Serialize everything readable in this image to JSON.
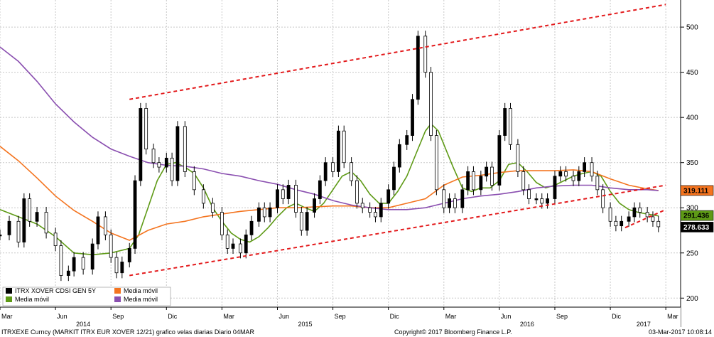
{
  "chart_data": {
    "type": "line",
    "title": "",
    "xlabel": "",
    "ylabel": "",
    "ylim": [
      190,
      530
    ],
    "y_ticks": [
      200,
      250,
      300,
      350,
      400,
      450,
      500
    ],
    "x_tick_labels": [
      "Mar",
      "Jun",
      "Sep",
      "Dic",
      "Mar",
      "Jun",
      "Sep",
      "Dic",
      "Mar",
      "Jun",
      "Sep",
      "Dic",
      "Mar"
    ],
    "x_ticks_months": [
      0,
      3,
      6,
      9,
      12,
      15,
      18,
      21,
      24,
      27,
      30,
      33,
      36
    ],
    "year_labels": [
      {
        "label": "2014",
        "month": 4.5
      },
      {
        "label": "2015",
        "month": 16.5
      },
      {
        "label": "2016",
        "month": 28.5
      },
      {
        "label": "2017",
        "month": 34.8
      }
    ],
    "last_values": [
      {
        "series": "Media móvil (200)",
        "value": "319.111",
        "color": "#f4741f"
      },
      {
        "series": "Media móvil (40)",
        "value": "291.436",
        "color": "#5e9a16"
      },
      {
        "series": "ITRX XOVER CDSI GEN 5Y",
        "value": "278.633",
        "color": "#000000"
      }
    ],
    "series": [
      {
        "name": "ITRX XOVER CDSI GEN 5Y",
        "kind": "candles",
        "color": "#000000",
        "points": [
          [
            0,
            270
          ],
          [
            0.5,
            285
          ],
          [
            1,
            262
          ],
          [
            1.3,
            310
          ],
          [
            1.6,
            285
          ],
          [
            2,
            295
          ],
          [
            2.5,
            272
          ],
          [
            3,
            258
          ],
          [
            3.3,
            225
          ],
          [
            3.7,
            230
          ],
          [
            4,
            245
          ],
          [
            4.5,
            232
          ],
          [
            5,
            260
          ],
          [
            5.3,
            290
          ],
          [
            5.7,
            270
          ],
          [
            6,
            245
          ],
          [
            6.3,
            228
          ],
          [
            6.6,
            240
          ],
          [
            7,
            255
          ],
          [
            7.3,
            330
          ],
          [
            7.6,
            410
          ],
          [
            7.9,
            365
          ],
          [
            8.3,
            350
          ],
          [
            8.6,
            345
          ],
          [
            9,
            355
          ],
          [
            9.3,
            330
          ],
          [
            9.6,
            390
          ],
          [
            10,
            340
          ],
          [
            10.5,
            320
          ],
          [
            11,
            305
          ],
          [
            11.5,
            295
          ],
          [
            12,
            270
          ],
          [
            12.3,
            255
          ],
          [
            12.6,
            260
          ],
          [
            13,
            250
          ],
          [
            13.3,
            270
          ],
          [
            13.6,
            285
          ],
          [
            14,
            300
          ],
          [
            14.3,
            290
          ],
          [
            14.6,
            300
          ],
          [
            15,
            320
          ],
          [
            15.3,
            310
          ],
          [
            15.6,
            325
          ],
          [
            16,
            295
          ],
          [
            16.3,
            275
          ],
          [
            16.6,
            295
          ],
          [
            17,
            310
          ],
          [
            17.3,
            330
          ],
          [
            17.6,
            350
          ],
          [
            18,
            340
          ],
          [
            18.3,
            385
          ],
          [
            18.6,
            350
          ],
          [
            19,
            330
          ],
          [
            19.3,
            305
          ],
          [
            19.6,
            300
          ],
          [
            20,
            295
          ],
          [
            20.3,
            290
          ],
          [
            20.6,
            305
          ],
          [
            21,
            320
          ],
          [
            21.3,
            345
          ],
          [
            21.6,
            370
          ],
          [
            22,
            380
          ],
          [
            22.3,
            420
          ],
          [
            22.6,
            490
          ],
          [
            23,
            450
          ],
          [
            23.3,
            380
          ],
          [
            23.6,
            320
          ],
          [
            24,
            300
          ],
          [
            24.3,
            310
          ],
          [
            24.6,
            300
          ],
          [
            25,
            320
          ],
          [
            25.3,
            340
          ],
          [
            25.6,
            320
          ],
          [
            26,
            335
          ],
          [
            26.3,
            345
          ],
          [
            26.6,
            325
          ],
          [
            27,
            380
          ],
          [
            27.3,
            410
          ],
          [
            27.6,
            370
          ],
          [
            28,
            340
          ],
          [
            28.3,
            320
          ],
          [
            28.6,
            310
          ],
          [
            29,
            310
          ],
          [
            29.3,
            305
          ],
          [
            29.6,
            310
          ],
          [
            30,
            335
          ],
          [
            30.3,
            340
          ],
          [
            30.6,
            335
          ],
          [
            31,
            330
          ],
          [
            31.3,
            340
          ],
          [
            31.6,
            350
          ],
          [
            32,
            335
          ],
          [
            32.3,
            320
          ],
          [
            32.6,
            300
          ],
          [
            33,
            285
          ],
          [
            33.3,
            280
          ],
          [
            33.6,
            285
          ],
          [
            34,
            290
          ],
          [
            34.3,
            300
          ],
          [
            34.6,
            295
          ],
          [
            35,
            290
          ],
          [
            35.3,
            285
          ],
          [
            35.6,
            279
          ]
        ]
      },
      {
        "name": "Media móvil (40)",
        "kind": "line",
        "color": "#5e9a16",
        "points": [
          [
            0,
            298
          ],
          [
            1,
            290
          ],
          [
            2,
            282
          ],
          [
            3,
            268
          ],
          [
            4,
            250
          ],
          [
            5,
            248
          ],
          [
            6,
            250
          ],
          [
            7,
            255
          ],
          [
            7.5,
            270
          ],
          [
            8,
            300
          ],
          [
            8.5,
            330
          ],
          [
            9,
            348
          ],
          [
            9.5,
            350
          ],
          [
            10,
            345
          ],
          [
            10.5,
            338
          ],
          [
            11,
            322
          ],
          [
            11.5,
            300
          ],
          [
            12,
            285
          ],
          [
            12.5,
            272
          ],
          [
            13,
            265
          ],
          [
            13.5,
            262
          ],
          [
            14,
            268
          ],
          [
            14.5,
            278
          ],
          [
            15,
            290
          ],
          [
            15.5,
            300
          ],
          [
            16,
            305
          ],
          [
            16.5,
            300
          ],
          [
            17,
            296
          ],
          [
            17.5,
            305
          ],
          [
            18,
            320
          ],
          [
            18.5,
            335
          ],
          [
            19,
            340
          ],
          [
            19.5,
            330
          ],
          [
            20,
            315
          ],
          [
            20.5,
            305
          ],
          [
            21,
            305
          ],
          [
            21.5,
            318
          ],
          [
            22,
            335
          ],
          [
            22.5,
            360
          ],
          [
            23,
            385
          ],
          [
            23.3,
            393
          ],
          [
            23.7,
            385
          ],
          [
            24,
            370
          ],
          [
            24.5,
            345
          ],
          [
            25,
            322
          ],
          [
            25.5,
            318
          ],
          [
            26,
            322
          ],
          [
            26.5,
            322
          ],
          [
            27,
            330
          ],
          [
            27.5,
            348
          ],
          [
            28,
            350
          ],
          [
            28.5,
            340
          ],
          [
            29,
            328
          ],
          [
            29.5,
            322
          ],
          [
            30,
            325
          ],
          [
            30.5,
            330
          ],
          [
            31,
            335
          ],
          [
            31.5,
            338
          ],
          [
            32,
            340
          ],
          [
            32.5,
            335
          ],
          [
            33,
            318
          ],
          [
            33.5,
            305
          ],
          [
            34,
            298
          ],
          [
            34.5,
            295
          ],
          [
            35,
            293
          ],
          [
            35.6,
            291
          ]
        ]
      },
      {
        "name": "Media móvil (200)",
        "kind": "line",
        "color": "#f4741f",
        "points": [
          [
            0,
            368
          ],
          [
            1,
            352
          ],
          [
            2,
            333
          ],
          [
            3,
            313
          ],
          [
            4,
            297
          ],
          [
            5,
            285
          ],
          [
            6,
            272
          ],
          [
            7,
            264
          ],
          [
            8,
            275
          ],
          [
            9,
            282
          ],
          [
            10,
            285
          ],
          [
            11,
            290
          ],
          [
            12,
            293
          ],
          [
            13,
            296
          ],
          [
            14,
            298
          ],
          [
            15,
            300
          ],
          [
            16,
            300
          ],
          [
            17,
            301
          ],
          [
            18,
            302
          ],
          [
            19,
            302
          ],
          [
            20,
            300
          ],
          [
            21,
            300
          ],
          [
            22,
            305
          ],
          [
            23,
            310
          ],
          [
            24,
            325
          ],
          [
            25,
            334
          ],
          [
            26,
            336
          ],
          [
            27,
            339
          ],
          [
            28,
            341
          ],
          [
            29,
            341
          ],
          [
            30,
            341
          ],
          [
            31,
            342
          ],
          [
            32,
            340
          ],
          [
            33,
            332
          ],
          [
            34,
            325
          ],
          [
            35,
            321
          ],
          [
            35.6,
            319
          ]
        ]
      },
      {
        "name": "Media móvil",
        "kind": "line",
        "color": "#8a4fb0",
        "points": [
          [
            0,
            478
          ],
          [
            1,
            462
          ],
          [
            2,
            440
          ],
          [
            3,
            415
          ],
          [
            4,
            395
          ],
          [
            5,
            378
          ],
          [
            6,
            365
          ],
          [
            7,
            357
          ],
          [
            8,
            350
          ],
          [
            9,
            347
          ],
          [
            10,
            346
          ],
          [
            11,
            343
          ],
          [
            12,
            338
          ],
          [
            13,
            335
          ],
          [
            14,
            330
          ],
          [
            15,
            326
          ],
          [
            16,
            320
          ],
          [
            17,
            315
          ],
          [
            18,
            308
          ],
          [
            19,
            303
          ],
          [
            20,
            300
          ],
          [
            21,
            298
          ],
          [
            22,
            298
          ],
          [
            23,
            300
          ],
          [
            24,
            305
          ],
          [
            25,
            310
          ],
          [
            26,
            313
          ],
          [
            27,
            315
          ],
          [
            28,
            318
          ],
          [
            29,
            322
          ],
          [
            30,
            324
          ],
          [
            31,
            325
          ],
          [
            32,
            325
          ],
          [
            33,
            322
          ],
          [
            34,
            320
          ],
          [
            35,
            320
          ],
          [
            35.6,
            319
          ]
        ]
      }
    ],
    "trendlines": [
      {
        "from": [
          7,
          420
        ],
        "to": [
          36,
          525
        ],
        "color": "#e31a1c"
      },
      {
        "from": [
          7,
          225
        ],
        "to": [
          36,
          325
        ],
        "color": "#e31a1c"
      },
      {
        "from": [
          33.8,
          278
        ],
        "to": [
          36,
          298
        ],
        "color": "#e31a1c"
      }
    ]
  },
  "legend": [
    {
      "label": "ITRX XOVER CDSI GEN 5Y",
      "color": "#000000"
    },
    {
      "label": "Media móvil",
      "color": "#5e9a16"
    },
    {
      "label": "Media móvil",
      "color": "#f4741f"
    },
    {
      "label": "Media móvil",
      "color": "#8a4fb0"
    }
  ],
  "footer": {
    "left": "ITRXEXE Curncy (MARKIT ITRX EUR XOVER 12/21) grafico velas diarias  Diario 04MAR",
    "center": "Copyright© 2017 Bloomberg Finance L.P.",
    "right": "03-Mar-2017 10:08:14"
  }
}
